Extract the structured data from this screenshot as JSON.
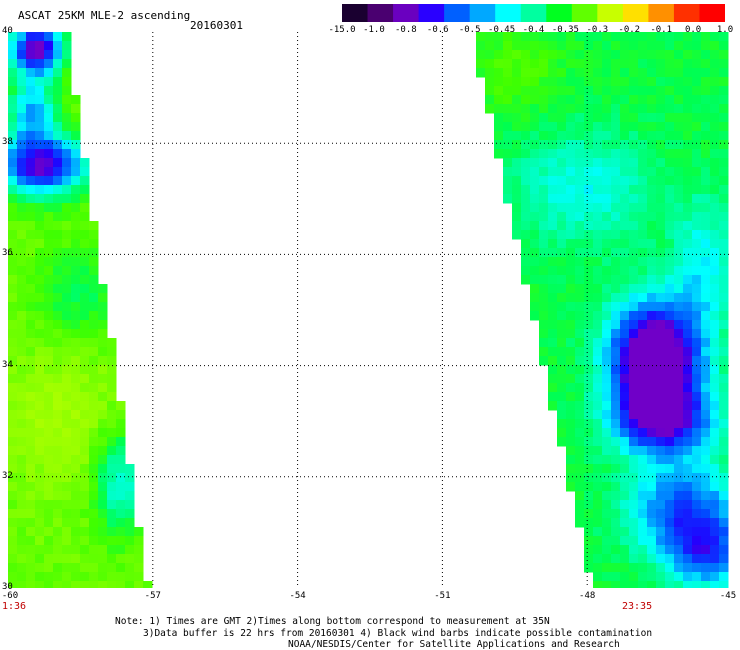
{
  "header": {
    "title": "ASCAT 25KM MLE-2 ascending",
    "date": "20160301"
  },
  "colorbar": {
    "ticks": [
      "-15.0",
      "-1.0",
      "-0.8",
      "-0.6",
      "-0.5",
      "-0.45",
      "-0.4",
      "-0.35",
      "-0.3",
      "-0.2",
      "-0.1",
      "0.0",
      "1.0"
    ],
    "colors": [
      "#1a0030",
      "#4a0070",
      "#6a00c0",
      "#2a00ff",
      "#0060ff",
      "#00a8ff",
      "#00ffff",
      "#00ffa0",
      "#00ff20",
      "#60ff00",
      "#c8ff00",
      "#ffe000",
      "#ff9000",
      "#ff3000",
      "#ff0000"
    ]
  },
  "map": {
    "lon_labels": [
      "-60",
      "-57",
      "-54",
      "-51",
      "-48",
      "-45"
    ],
    "lat_labels": [
      "40",
      "38",
      "36",
      "34",
      "32",
      "30"
    ],
    "lon_range": [
      -60,
      -45
    ],
    "lat_range": [
      30,
      40
    ],
    "grid": true
  },
  "times": {
    "left": "1:36",
    "right": "23:35"
  },
  "notes": {
    "line1": "Note: 1) Times are GMT 2)Times along bottom correspond to measurement at 35N",
    "line2": "3)Data buffer is 22 hrs from 20160301 4) Black wind barbs indicate possible contamination",
    "line3": "NOAA/NESDIS/Center for Satellite Applications and Research"
  },
  "swaths": {
    "left": {
      "lon_min": -60,
      "lon_max_top": -58.8,
      "lon_max_bottom": -57.1
    },
    "right": {
      "lon_min_top": -50.4,
      "lon_min_bottom": -47.9,
      "lon_max": -45
    }
  }
}
